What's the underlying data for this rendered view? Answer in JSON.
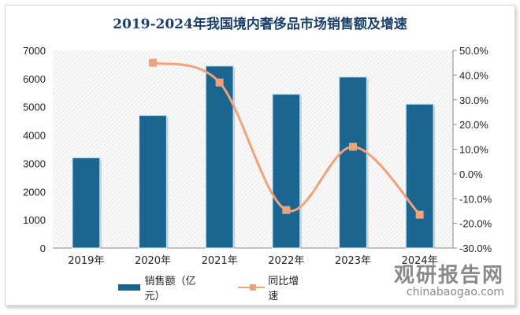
{
  "chart_data": {
    "type": "bar",
    "title": "2019-2024年我国境内奢侈品市场销售额及增速",
    "categories": [
      "2019年",
      "2020年",
      "2021年",
      "2022年",
      "2023年",
      "2024年"
    ],
    "series": [
      {
        "name": "销售额（亿元）",
        "type": "bar",
        "axis": "left",
        "color": "#1b6690",
        "values": [
          3200,
          4700,
          6450,
          5450,
          6060,
          5100
        ]
      },
      {
        "name": "同比增速",
        "type": "line",
        "axis": "right",
        "color": "#f0a27a",
        "values": [
          null,
          45.0,
          37.0,
          -14.6,
          11.0,
          -16.5
        ]
      }
    ],
    "left_axis": {
      "ylim": [
        0,
        7000
      ],
      "ticks": [
        "0",
        "1000",
        "2000",
        "3000",
        "4000",
        "5000",
        "6000",
        "7000"
      ]
    },
    "right_axis": {
      "ylim": [
        -30,
        50
      ],
      "ticks": [
        "-30.0%",
        "-20.0%",
        "-10.0%",
        "0.0%",
        "10.0%",
        "20.0%",
        "30.0%",
        "40.0%",
        "50.0%"
      ]
    },
    "legend_position": "bottom"
  },
  "watermark": {
    "cn": "观研报告网",
    "en": "chinabaogao.com"
  }
}
